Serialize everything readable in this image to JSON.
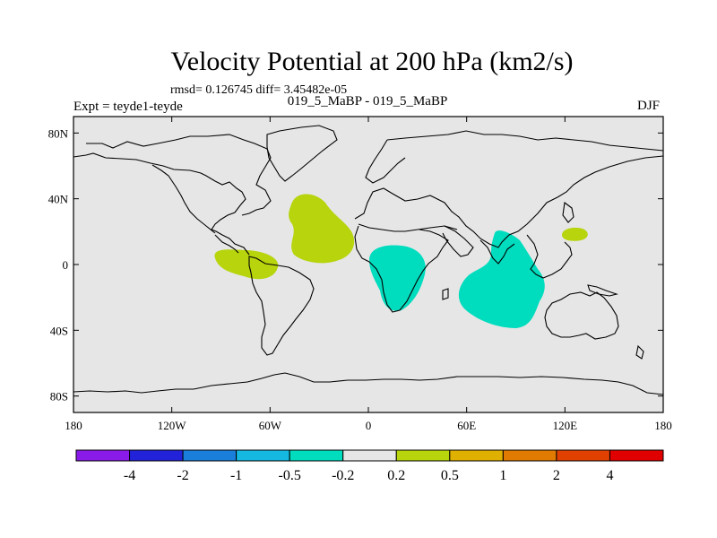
{
  "title": "Velocity Potential at 200 hPa (km2/s)",
  "stats": "rmsd= 0.126745 diff= 3.45482e-05",
  "experiment": "Expt = teyde1-teyde",
  "period": "019_5_MaBP - 019_5_MaBP",
  "season": "DJF",
  "map": {
    "background_color": "#e6e6e6",
    "coastline_color": "#000000",
    "x_ticks": [
      {
        "lon": -180,
        "label": "180"
      },
      {
        "lon": -120,
        "label": "120W"
      },
      {
        "lon": -60,
        "label": "60W"
      },
      {
        "lon": 0,
        "label": "0"
      },
      {
        "lon": 60,
        "label": "60E"
      },
      {
        "lon": 120,
        "label": "120E"
      },
      {
        "lon": 180,
        "label": "180"
      }
    ],
    "y_ticks": [
      {
        "lat": 80,
        "label": "80N"
      },
      {
        "lat": 40,
        "label": "40N"
      },
      {
        "lat": 0,
        "label": "0"
      },
      {
        "lat": -40,
        "label": "40S"
      },
      {
        "lat": -80,
        "label": "80S"
      }
    ],
    "anomalies": [
      {
        "name": "east-pacific-positive-anomaly",
        "sign": "positive",
        "class": "0.2 to 0.5",
        "color": "#b7d40d",
        "center_lon": -73,
        "center_lat": -1
      },
      {
        "name": "north-atlantic-positive-anomaly",
        "sign": "positive",
        "class": "0.2 to 0.5",
        "color": "#b7d40d",
        "center_lon": -28,
        "center_lat": 23
      },
      {
        "name": "west-pacific-positive-anomaly",
        "sign": "positive",
        "class": "0.2 to 0.5",
        "color": "#b7d40d",
        "center_lon": 128,
        "center_lat": 19
      },
      {
        "name": "africa-negative-anomaly",
        "sign": "negative",
        "class": "-0.5 to -0.2",
        "color": "#00dcbe",
        "center_lon": 22,
        "center_lat": -3
      },
      {
        "name": "indian-ocean-negative-anomaly",
        "sign": "negative",
        "class": "-0.5 to -0.2",
        "color": "#00dcbe",
        "center_lon": 82,
        "center_lat": -15
      }
    ]
  },
  "colorbar": {
    "colors": [
      "#8a1ae8",
      "#2222d8",
      "#1a7fdb",
      "#14b8e0",
      "#00dcbe",
      "#e6e6e6",
      "#b7d40d",
      "#e0b000",
      "#e07a00",
      "#e04000",
      "#e00000"
    ],
    "labels": [
      "-4",
      "-2",
      "-1",
      "-0.5",
      "-0.2",
      "0.2",
      "0.5",
      "1",
      "2",
      "4"
    ]
  }
}
